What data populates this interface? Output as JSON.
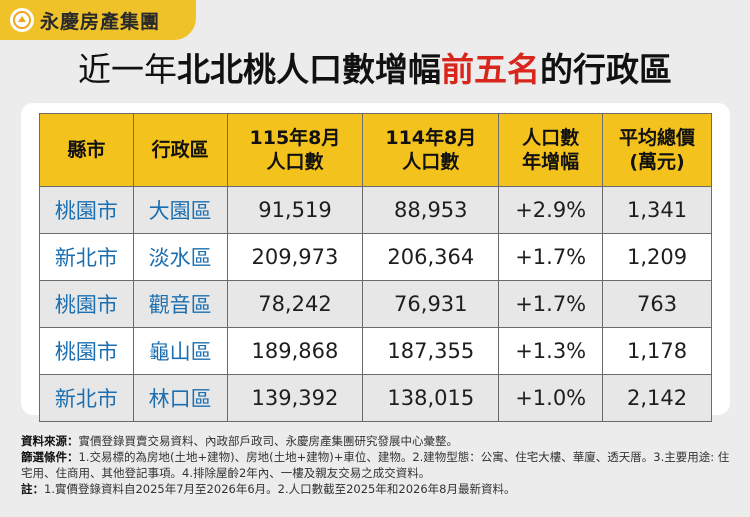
{
  "brand": {
    "name": "永慶房產集團"
  },
  "title": {
    "prefix": "近一年",
    "main": "北北桃人口數增幅",
    "highlight": "前五名",
    "suffix": "的行政區"
  },
  "table": {
    "headers": {
      "city": "縣市",
      "district": "行政區",
      "pop_current_l1": "115年8月",
      "pop_current_l2": "人口數",
      "pop_prev_l1": "114年8月",
      "pop_prev_l2": "人口數",
      "growth_l1": "人口數",
      "growth_l2": "年增幅",
      "price_l1": "平均總價",
      "price_l2": "(萬元)"
    },
    "rows": [
      {
        "city": "桃園市",
        "district": "大園區",
        "pop_current": "91,519",
        "pop_prev": "88,953",
        "growth": "+2.9%",
        "price": "1,341"
      },
      {
        "city": "新北市",
        "district": "淡水區",
        "pop_current": "209,973",
        "pop_prev": "206,364",
        "growth": "+1.7%",
        "price": "1,209"
      },
      {
        "city": "桃園市",
        "district": "觀音區",
        "pop_current": "78,242",
        "pop_prev": "76,931",
        "growth": "+1.7%",
        "price": "763"
      },
      {
        "city": "桃園市",
        "district": "龜山區",
        "pop_current": "189,868",
        "pop_prev": "187,355",
        "growth": "+1.3%",
        "price": "1,178"
      },
      {
        "city": "新北市",
        "district": "林口區",
        "pop_current": "139,392",
        "pop_prev": "138,015",
        "growth": "+1.0%",
        "price": "2,142"
      }
    ]
  },
  "notes": {
    "source_label": "資料來源：",
    "source_text": "實價登錄買賣交易資料、內政部戶政司、永慶房產集團研究發展中心彙整。",
    "filter_label": "篩選條件：",
    "filter_text": "1.交易標的為房地(土地+建物)、房地(土地+建物)+車位、建物。2.建物型態：公寓、住宅大樓、華廈、透天厝。3.主要用途: 住宅用、住商用、其他登記事項。4.排除屋齡2年內、一樓及親友交易之成交資料。",
    "note_label": "註：",
    "note_text": "1.實價登錄資料自2025年7月至2026年6月。2.人口數截至2025年和2026年8月最新資料。"
  },
  "colors": {
    "header_bg": "#f4c21c",
    "accent_red": "#d9261c",
    "area_blue": "#1b6fb0",
    "brand_yellow": "#f0c22a"
  }
}
